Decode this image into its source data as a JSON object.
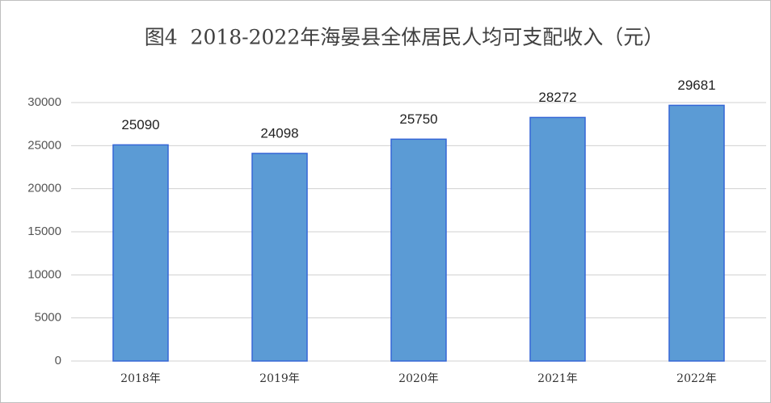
{
  "chart_data": {
    "type": "bar",
    "title": "图4  2018-2022年海晏县全体居民人均可支配收入（元）",
    "categories": [
      "2018年",
      "2019年",
      "2020年",
      "2021年",
      "2022年"
    ],
    "values": [
      25090,
      24098,
      25750,
      28272,
      29681
    ],
    "color": "#5b9bd5",
    "ylim": [
      0,
      30000
    ],
    "yticks": [
      0,
      5000,
      10000,
      15000,
      20000,
      25000,
      30000
    ],
    "grid": true
  }
}
